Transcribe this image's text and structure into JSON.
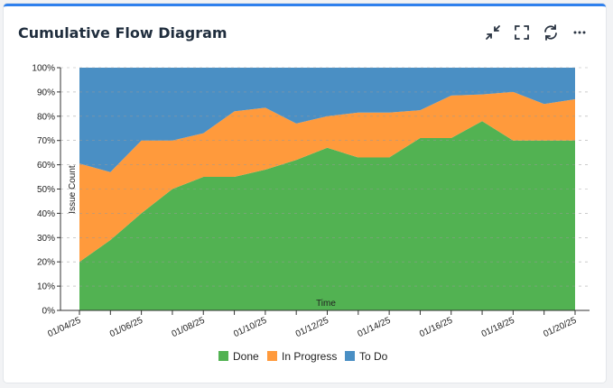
{
  "header": {
    "title": "Cumulative Flow Diagram",
    "tools": [
      {
        "name": "collapse-icon"
      },
      {
        "name": "fullscreen-icon"
      },
      {
        "name": "refresh-icon"
      },
      {
        "name": "more-icon"
      }
    ]
  },
  "colors": {
    "done": "#52b252",
    "in_progress": "#ff9a3c",
    "to_do": "#4a8fc4",
    "grid": "#999999"
  },
  "chart_data": {
    "type": "area",
    "stacked": true,
    "xlabel": "Time",
    "ylabel": "Issue Count",
    "ylim": [
      0,
      100
    ],
    "y_ticks": [
      "0%",
      "10%",
      "20%",
      "30%",
      "40%",
      "50%",
      "60%",
      "70%",
      "80%",
      "90%",
      "100%"
    ],
    "x_tick_labels": [
      "01/04/25",
      "01/06/25",
      "01/08/25",
      "01/10/25",
      "01/12/25",
      "01/14/25",
      "01/16/25",
      "01/18/25",
      "01/20/25"
    ],
    "grid": true,
    "legend": "bottom",
    "dates": [
      "01/04/25",
      "01/05/25",
      "01/06/25",
      "01/07/25",
      "01/08/25",
      "01/09/25",
      "01/10/25",
      "01/11/25",
      "01/12/25",
      "01/13/25",
      "01/14/25",
      "01/15/25",
      "01/16/25",
      "01/17/25",
      "01/18/25",
      "01/19/25",
      "01/20/25"
    ],
    "series": [
      {
        "name": "Done",
        "values": [
          20,
          29,
          40,
          50,
          55,
          55,
          58,
          62,
          67,
          63,
          63,
          71,
          71,
          78,
          70,
          70,
          70
        ]
      },
      {
        "name": "In Progress",
        "values": [
          40.5,
          28,
          30,
          20,
          18,
          27,
          25.5,
          15,
          13,
          18.5,
          18.5,
          11.5,
          17.5,
          11,
          20,
          15,
          17
        ]
      },
      {
        "name": "To Do",
        "values": [
          39.5,
          43,
          30,
          30,
          27,
          18,
          16.5,
          23,
          20,
          18.5,
          18.5,
          17.5,
          11.5,
          11,
          10,
          15,
          13
        ]
      }
    ]
  }
}
